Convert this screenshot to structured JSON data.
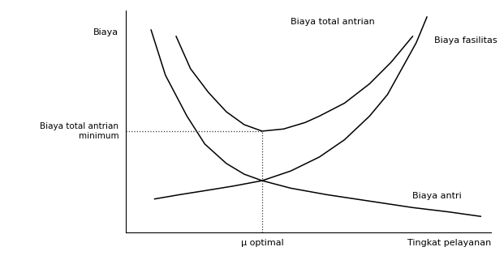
{
  "chart_data": {
    "type": "line",
    "x_label": "Tingkat pelayanan",
    "y_label": "Biaya",
    "xlim": [
      0,
      10.2
    ],
    "ylim": [
      0,
      10.3
    ],
    "tick_labels": false,
    "grid": false,
    "series": [
      {
        "name": "Biaya total antrian",
        "color": "#000000",
        "x": [
          1.4,
          1.8,
          2.3,
          2.8,
          3.3,
          3.8,
          4.4,
          5.0,
          5.4,
          6.1,
          6.8,
          7.4,
          8.0
        ],
        "values": [
          9.1,
          7.6,
          6.5,
          5.6,
          5.0,
          4.7,
          4.8,
          5.1,
          5.4,
          6.0,
          6.9,
          7.9,
          9.1
        ]
      },
      {
        "name": "Biaya fasilitas",
        "color": "#000000",
        "x": [
          0.8,
          1.5,
          2.3,
          3.0,
          3.8,
          4.6,
          5.4,
          6.1,
          6.8,
          7.3,
          7.7,
          8.1,
          8.4
        ],
        "values": [
          1.55,
          1.75,
          1.96,
          2.15,
          2.4,
          2.85,
          3.5,
          4.3,
          5.4,
          6.4,
          7.6,
          8.8,
          10.0
        ]
      },
      {
        "name": "Biaya antri",
        "color": "#000000",
        "x": [
          0.7,
          1.1,
          1.7,
          2.2,
          2.8,
          3.3,
          3.8,
          4.6,
          5.6,
          6.8,
          8.0,
          9.0,
          9.9
        ],
        "values": [
          9.4,
          7.3,
          5.4,
          4.1,
          3.2,
          2.7,
          2.4,
          2.05,
          1.75,
          1.45,
          1.15,
          0.95,
          0.74
        ]
      }
    ],
    "annotations": [
      {
        "text": "Biaya total antrian\nminimum",
        "y": 4.7
      },
      {
        "text": "μ optimal",
        "x": 3.8
      }
    ]
  }
}
